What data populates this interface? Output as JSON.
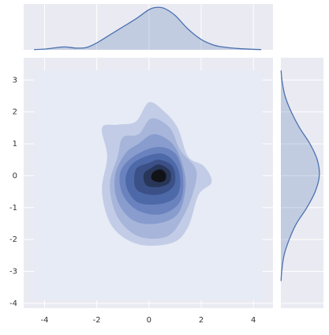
{
  "chart_data": {
    "type": "kde",
    "xlim": [
      -4.8,
      4.75
    ],
    "ylim": [
      -4.15,
      3.7
    ],
    "xticks": [
      -4,
      -2,
      0,
      2,
      4
    ],
    "yticks": [
      -4,
      -3,
      -2,
      -1,
      0,
      1,
      2,
      3
    ],
    "grid": true,
    "contours": [
      {
        "color": "#e6ebf5",
        "x": [
          -4.4,
          4.35,
          4.35,
          -4.4
        ],
        "y": [
          3.3,
          3.3,
          -3.9,
          -3.9
        ]
      },
      {
        "color": "#c3cce6",
        "x": [
          0.0,
          0.6,
          1.1,
          1.5,
          2.1,
          2.4,
          1.9,
          1.5,
          0.9,
          -0.4,
          -1.4,
          -1.8,
          -1.6,
          -1.8,
          -1.2,
          -0.5
        ],
        "y": [
          2.3,
          2.0,
          1.5,
          0.6,
          0.3,
          -0.2,
          -0.6,
          -1.6,
          -2.1,
          -2.15,
          -1.6,
          -0.5,
          0.6,
          1.5,
          1.6,
          1.7
        ]
      },
      {
        "color": "#a7b5da",
        "x": [
          0.1,
          0.8,
          1.2,
          1.8,
          1.7,
          1.3,
          0.7,
          -0.4,
          -1.2,
          -1.5,
          -1.2,
          -1.0,
          -0.4
        ],
        "y": [
          1.8,
          1.5,
          0.8,
          0.2,
          -0.5,
          -1.3,
          -1.9,
          -1.9,
          -1.3,
          -0.3,
          0.6,
          1.2,
          1.3
        ]
      },
      {
        "color": "#889cce",
        "x": [
          0.2,
          0.9,
          1.3,
          1.4,
          1.1,
          0.3,
          -0.6,
          -1.2,
          -1.3,
          -0.9,
          -0.4
        ],
        "y": [
          1.3,
          1.0,
          0.3,
          -0.4,
          -1.2,
          -1.5,
          -1.4,
          -0.8,
          0.0,
          0.7,
          1.0
        ]
      },
      {
        "color": "#6a83bf",
        "x": [
          0.3,
          1.0,
          1.3,
          1.2,
          0.5,
          -0.4,
          -1.0,
          -1.1,
          -0.6
        ],
        "y": [
          0.9,
          0.7,
          0.0,
          -0.8,
          -1.2,
          -1.1,
          -0.6,
          0.1,
          0.6
        ]
      },
      {
        "color": "#4e69a8",
        "x": [
          0.4,
          1.0,
          1.2,
          1.0,
          0.3,
          -0.5,
          -0.9,
          -0.6
        ],
        "y": [
          0.7,
          0.4,
          -0.2,
          -0.7,
          -0.9,
          -0.8,
          -0.2,
          0.4
        ]
      },
      {
        "color": "#3b5087",
        "x": [
          0.4,
          0.9,
          1.0,
          0.7,
          0.1,
          -0.5,
          -0.5,
          0.0
        ],
        "y": [
          0.5,
          0.3,
          -0.2,
          -0.5,
          -0.6,
          -0.4,
          0.2,
          0.4
        ]
      },
      {
        "color": "#283659",
        "x": [
          0.4,
          0.8,
          0.8,
          0.4,
          -0.1,
          -0.2,
          0.1
        ],
        "y": [
          0.35,
          0.15,
          -0.2,
          -0.35,
          -0.3,
          0.05,
          0.25
        ]
      },
      {
        "color": "#111319",
        "x": [
          0.45,
          0.65,
          0.6,
          0.35,
          0.1,
          0.15
        ],
        "y": [
          0.2,
          0.05,
          -0.15,
          -0.2,
          -0.1,
          0.1
        ]
      }
    ],
    "marginal_x": {
      "color": "#4c72b0",
      "x": [
        -4.4,
        -4,
        -3.5,
        -3.2,
        -2.8,
        -2.4,
        -2,
        -1.5,
        -1,
        -0.5,
        0,
        0.3,
        0.6,
        1,
        1.5,
        2,
        2.5,
        3,
        3.5,
        4,
        4.3
      ],
      "values": [
        0.002,
        0.006,
        0.02,
        0.025,
        0.015,
        0.02,
        0.06,
        0.13,
        0.2,
        0.27,
        0.35,
        0.37,
        0.36,
        0.3,
        0.18,
        0.09,
        0.04,
        0.02,
        0.01,
        0.004,
        0.002
      ],
      "ylim": [
        0,
        0.4
      ]
    },
    "marginal_y": {
      "color": "#4c72b0",
      "y": [
        3.3,
        3,
        2.5,
        2,
        1.5,
        1,
        0.5,
        0,
        -0.5,
        -1,
        -1.5,
        -2,
        -2.5,
        -3,
        -3.3
      ],
      "values": [
        0.002,
        0.01,
        0.04,
        0.1,
        0.18,
        0.28,
        0.35,
        0.37,
        0.33,
        0.25,
        0.15,
        0.08,
        0.03,
        0.008,
        0.002
      ],
      "xlim": [
        0,
        0.41
      ]
    }
  }
}
